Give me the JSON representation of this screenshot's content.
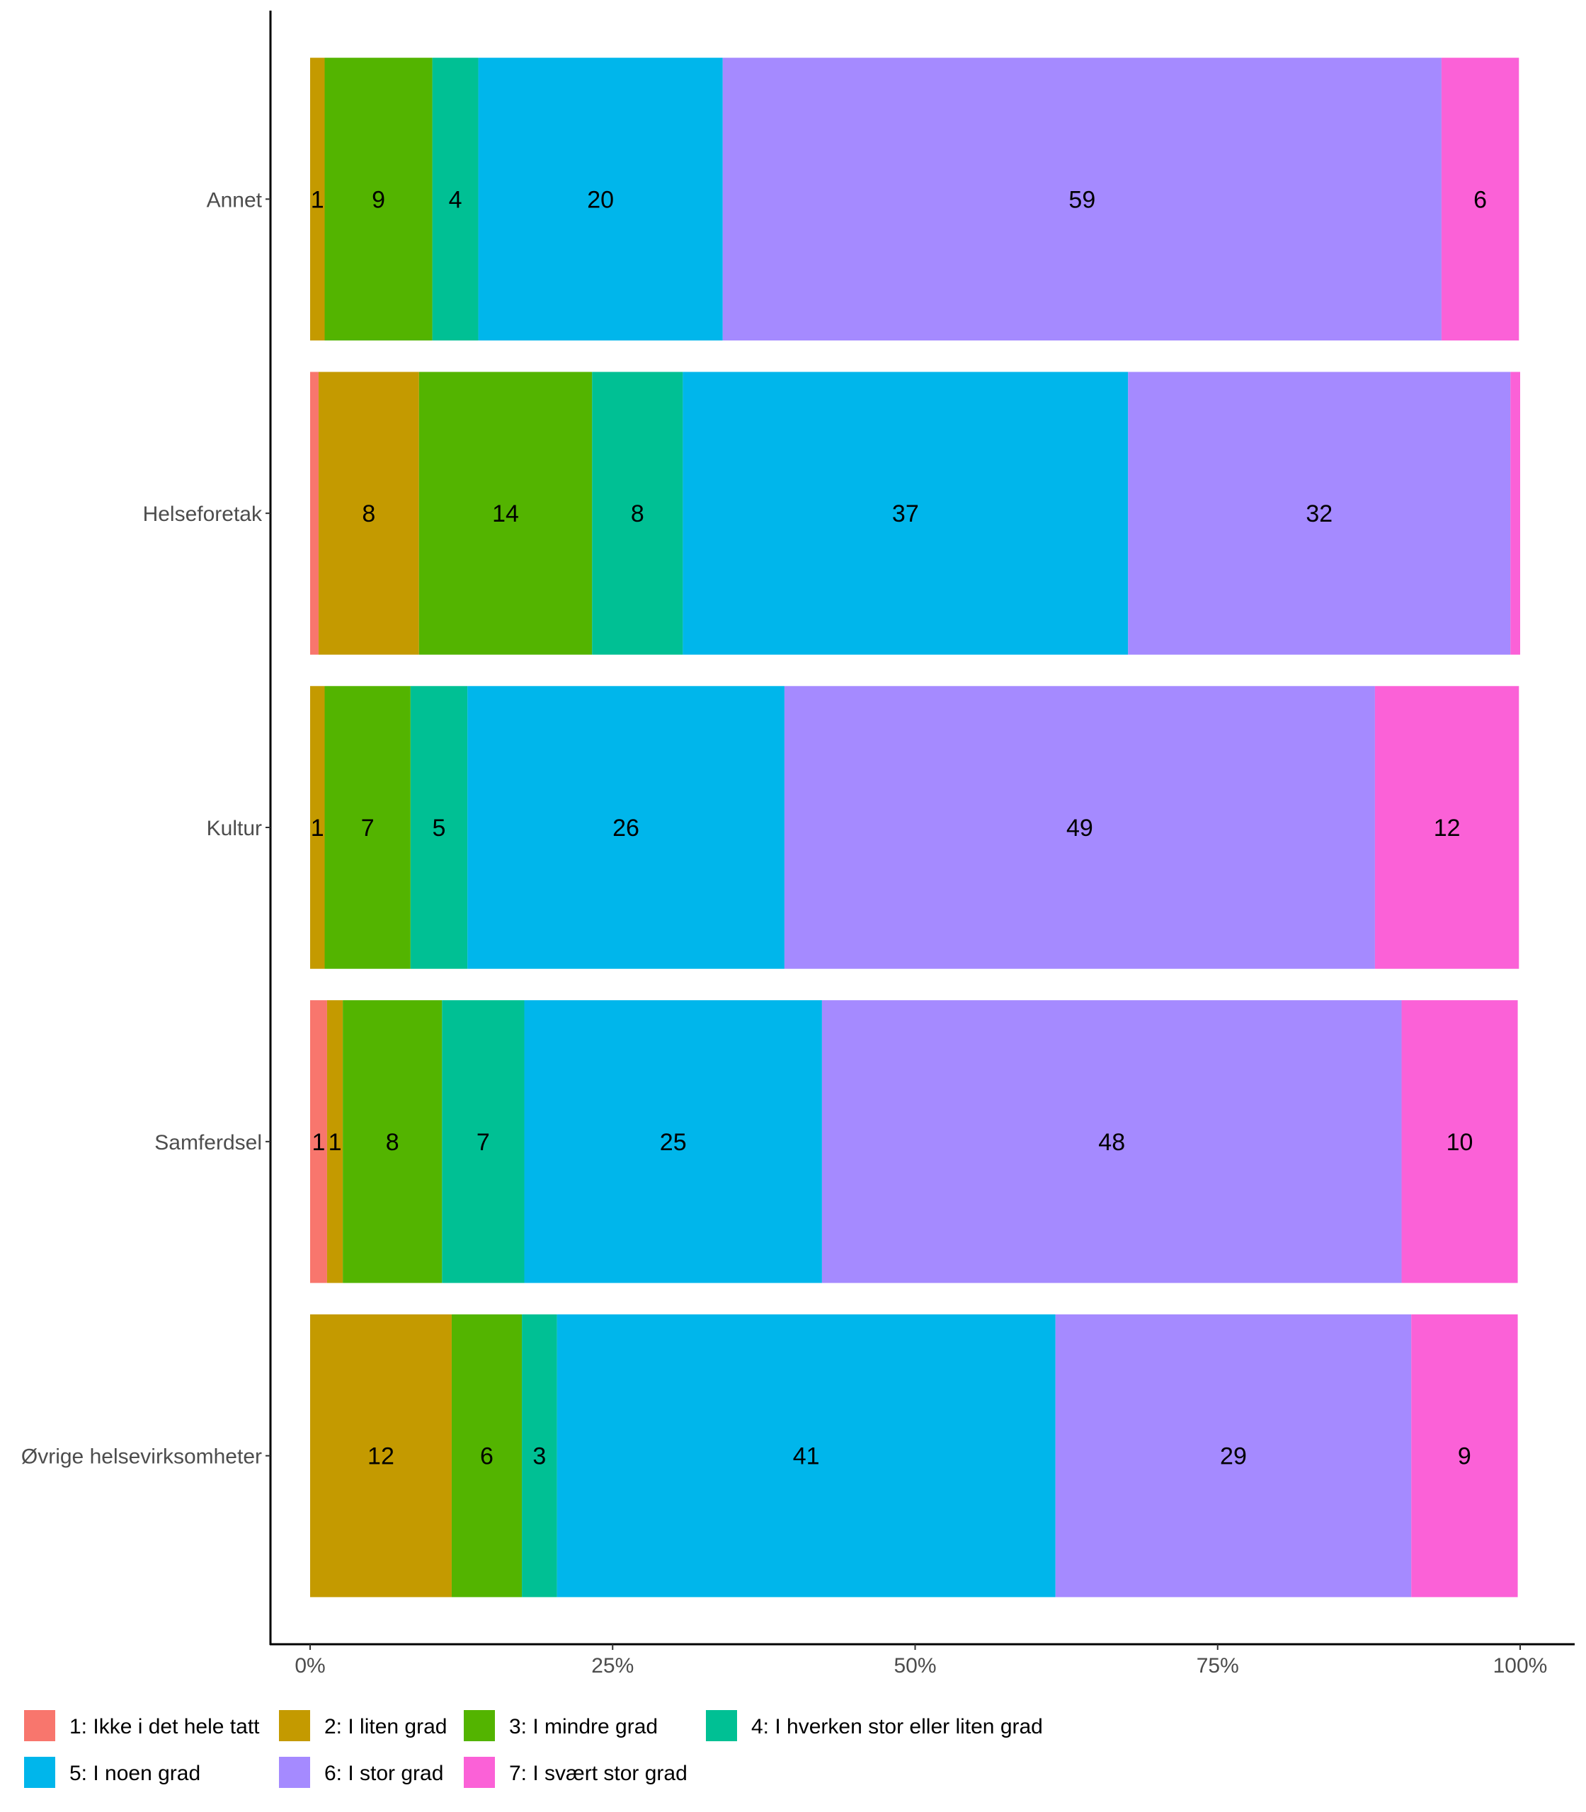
{
  "chart_data": {
    "type": "bar",
    "orientation": "horizontal",
    "stacked": true,
    "normalized": true,
    "title": "",
    "xlabel": "",
    "ylabel": "",
    "xlim": [
      0,
      100
    ],
    "x_ticks": [
      "0%",
      "25%",
      "50%",
      "75%",
      "100%"
    ],
    "x_tick_values": [
      0,
      25,
      50,
      75,
      100
    ],
    "grid": false,
    "legend_position": "bottom",
    "categories": [
      "Annet",
      "Helseforetak",
      "Kultur",
      "Samferdsel",
      "Øvrige helsevirksomheter"
    ],
    "series": [
      {
        "name": "1: Ikke i det hele tatt",
        "color": "#F8766D",
        "values": [
          0,
          0.7,
          0,
          1.4,
          0
        ],
        "labels": [
          "",
          "",
          "",
          "1",
          ""
        ]
      },
      {
        "name": "2: I liten grad",
        "color": "#C49A00",
        "values": [
          1.2,
          8.3,
          1.2,
          1.3,
          11.7
        ],
        "labels": [
          "1",
          "8",
          "1",
          "1",
          "12"
        ]
      },
      {
        "name": "3: I mindre grad",
        "color": "#53B400",
        "values": [
          8.9,
          14.3,
          7.1,
          8.2,
          5.8
        ],
        "labels": [
          "9",
          "14",
          "7",
          "8",
          "6"
        ]
      },
      {
        "name": "4: I hverken stor eller liten grad",
        "color": "#00C094",
        "values": [
          3.8,
          7.5,
          4.7,
          6.8,
          2.9
        ],
        "labels": [
          "4",
          "8",
          "5",
          "7",
          "3"
        ]
      },
      {
        "name": "5: I noen grad",
        "color": "#00B6EB",
        "values": [
          20.2,
          36.8,
          26.2,
          24.6,
          41.2
        ],
        "labels": [
          "20",
          "37",
          "26",
          "25",
          "41"
        ]
      },
      {
        "name": "6: I stor grad",
        "color": "#A58AFF",
        "values": [
          59.4,
          31.6,
          48.8,
          47.9,
          29.4
        ],
        "labels": [
          "59",
          "32",
          "49",
          "48",
          "29"
        ]
      },
      {
        "name": "7: I svært stor grad",
        "color": "#FB61D7",
        "values": [
          6.4,
          0.8,
          11.9,
          9.6,
          8.8
        ],
        "labels": [
          "6",
          "",
          "12",
          "10",
          "9"
        ]
      }
    ]
  }
}
